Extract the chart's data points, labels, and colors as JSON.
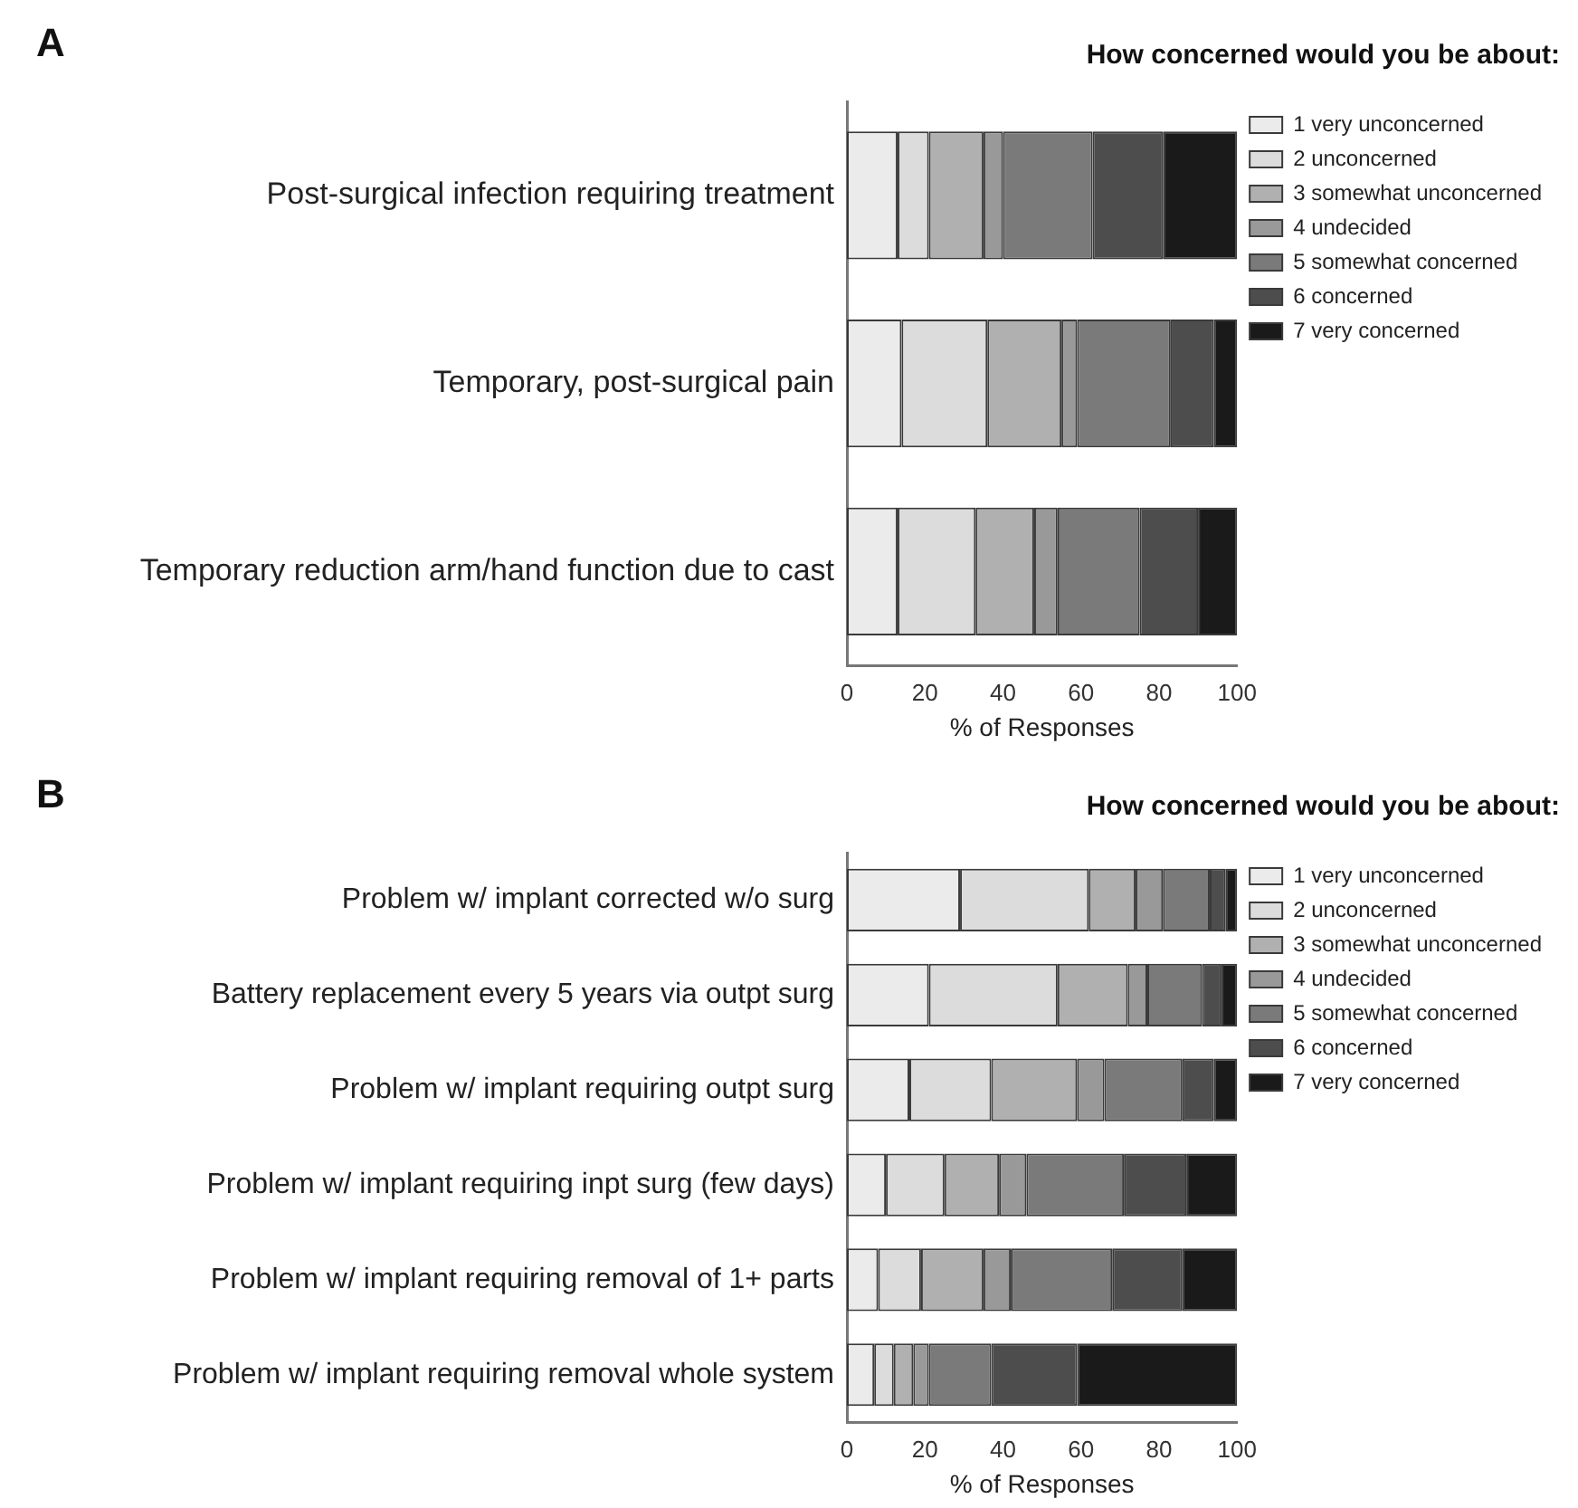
{
  "chart_data": [
    {
      "type": "bar",
      "orientation": "horizontal",
      "stacked": true,
      "title": "How concerned would you be about:",
      "annotations": [
        "A"
      ],
      "xlabel": "% of Responses",
      "categories": [
        "Post-surgical infection requiring treatment",
        "Temporary, post-surgical pain",
        "Temporary reduction arm/hand function due to cast"
      ],
      "xlim": [
        0,
        100
      ],
      "xticks": [
        0,
        20,
        40,
        60,
        80,
        100
      ],
      "grid": false,
      "legend": "top right",
      "series": [
        {
          "name": "1 very unconcerned",
          "color": "#ebebeb",
          "values": [
            13,
            14,
            13
          ]
        },
        {
          "name": "2 unconcerned",
          "color": "#dcdcdc",
          "values": [
            8,
            22,
            20
          ]
        },
        {
          "name": "3 somewhat unconcerned",
          "color": "#b0b0b0",
          "values": [
            14,
            19,
            15
          ]
        },
        {
          "name": "4 undecided",
          "color": "#999999",
          "values": [
            5,
            4,
            6
          ]
        },
        {
          "name": "5 somewhat concerned",
          "color": "#7a7a7a",
          "values": [
            23,
            24,
            21
          ]
        },
        {
          "name": "6 concerned",
          "color": "#4d4d4d",
          "values": [
            18,
            11,
            15
          ]
        },
        {
          "name": "7 very concerned",
          "color": "#1a1a1a",
          "values": [
            19,
            6,
            10
          ]
        }
      ]
    },
    {
      "type": "bar",
      "orientation": "horizontal",
      "stacked": true,
      "title": "How concerned would you be about:",
      "annotations": [
        "B"
      ],
      "xlabel": "% of Responses",
      "categories": [
        "Problem w/ implant corrected w/o surg",
        "Battery replacement every 5 years via outpt surg",
        "Problem w/ implant requiring outpt surg",
        "Problem w/ implant requiring inpt surg (few days)",
        "Problem w/ implant requiring removal of 1+ parts",
        "Problem w/ implant requiring removal whole system"
      ],
      "xlim": [
        0,
        100
      ],
      "xticks": [
        0,
        20,
        40,
        60,
        80,
        100
      ],
      "grid": false,
      "legend": "top right",
      "series": [
        {
          "name": "1 very unconcerned",
          "color": "#ebebeb",
          "values": [
            29,
            21,
            16,
            10,
            8,
            7
          ]
        },
        {
          "name": "2 unconcerned",
          "color": "#dcdcdc",
          "values": [
            33,
            33,
            21,
            15,
            11,
            5
          ]
        },
        {
          "name": "3 somewhat unconcerned",
          "color": "#b0b0b0",
          "values": [
            12,
            18,
            22,
            14,
            16,
            5
          ]
        },
        {
          "name": "4 undecided",
          "color": "#999999",
          "values": [
            7,
            5,
            7,
            7,
            7,
            4
          ]
        },
        {
          "name": "5 somewhat concerned",
          "color": "#7a7a7a",
          "values": [
            12,
            14,
            20,
            25,
            26,
            16
          ]
        },
        {
          "name": "6 concerned",
          "color": "#4d4d4d",
          "values": [
            4,
            5,
            8,
            16,
            18,
            22
          ]
        },
        {
          "name": "7 very concerned",
          "color": "#1a1a1a",
          "values": [
            3,
            4,
            6,
            13,
            14,
            41
          ]
        }
      ]
    }
  ]
}
